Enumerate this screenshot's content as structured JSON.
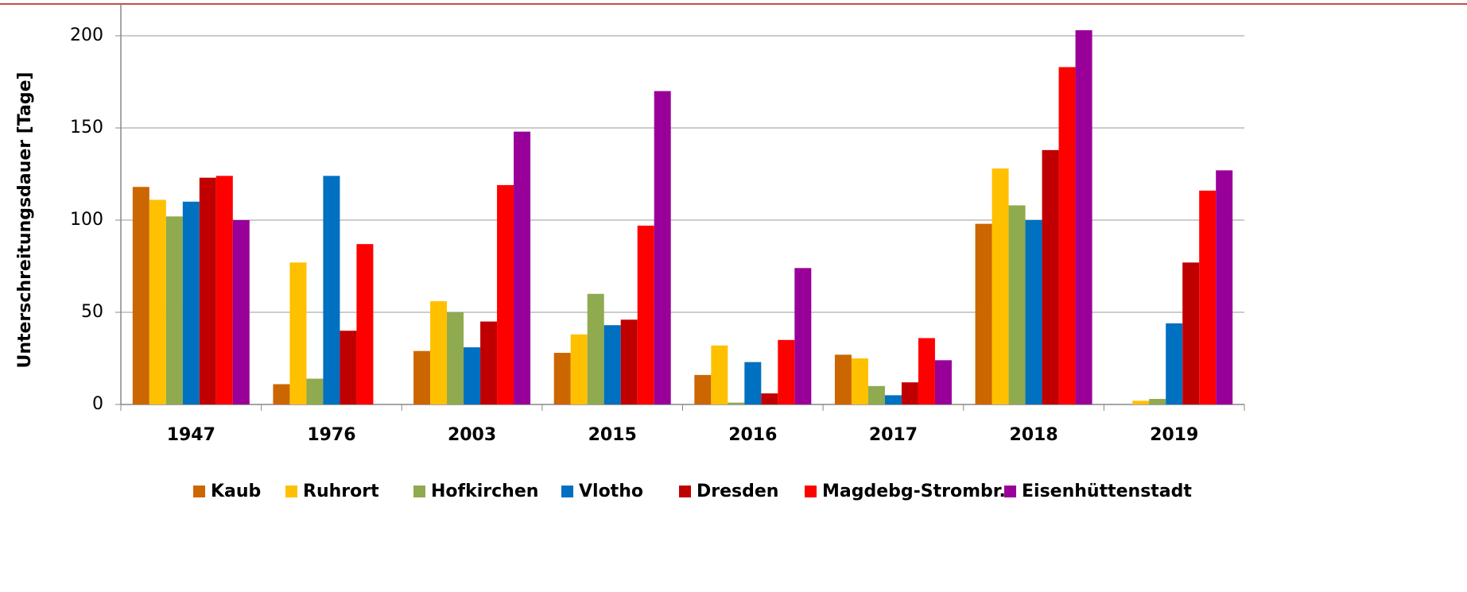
{
  "chart_data": {
    "type": "bar",
    "y_label": "Unterschreitungsdauer [Tage]",
    "categories": [
      "1947",
      "1976",
      "2003",
      "2015",
      "2016",
      "2017",
      "2018",
      "2019"
    ],
    "series": [
      {
        "name": "Kaub",
        "color": "#cc6600",
        "values": [
          118,
          11,
          29,
          28,
          16,
          27,
          98,
          null
        ]
      },
      {
        "name": "Ruhrort",
        "color": "#ffc000",
        "values": [
          111,
          77,
          56,
          38,
          32,
          25,
          128,
          2
        ]
      },
      {
        "name": "Hofkirchen",
        "color": "#8faa4f",
        "values": [
          102,
          14,
          50,
          60,
          1,
          10,
          108,
          3
        ]
      },
      {
        "name": "Vlotho",
        "color": "#0070c0",
        "values": [
          110,
          124,
          31,
          43,
          23,
          5,
          100,
          44
        ]
      },
      {
        "name": "Dresden",
        "color": "#c00000",
        "values": [
          123,
          40,
          45,
          46,
          6,
          12,
          138,
          77
        ]
      },
      {
        "name": "Magdebg-Strombr.",
        "color": "#ff0000",
        "values": [
          124,
          87,
          119,
          97,
          35,
          36,
          183,
          116
        ]
      },
      {
        "name": "Eisenhüttenstadt",
        "color": "#990099",
        "values": [
          100,
          null,
          148,
          170,
          74,
          24,
          203,
          127
        ]
      }
    ],
    "ylim": [
      0,
      200
    ],
    "yticks": [
      0,
      50,
      100,
      150,
      200
    ],
    "grid": true,
    "legend": "bottom"
  }
}
